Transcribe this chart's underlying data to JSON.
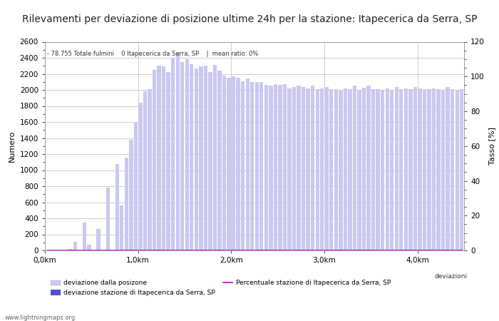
{
  "title": "Rilevamenti per deviazione di posizione ultime 24h per la stazione: Itapecerica da Serra, SP",
  "subtitle": "- 78.755 Totale fulmini    0 Itapecerica da Serra, SP    |  mean ratio: 0%",
  "ylabel_left": "Numero",
  "ylabel_right": "Tasso [%]",
  "watermark": "www.lightningmaps.org",
  "xtick_labels": [
    "0,0km",
    "1,0km",
    "2,0km",
    "3,0km",
    "4,0km"
  ],
  "ylim_left": [
    0,
    2600
  ],
  "ylim_right": [
    0,
    120
  ],
  "n_bars": 90,
  "km_range": 4.5,
  "bar_values": [
    0,
    2,
    0,
    0,
    0,
    15,
    110,
    0,
    350,
    75,
    0,
    270,
    0,
    780,
    0,
    1080,
    560,
    1160,
    1380,
    1590,
    1840,
    1980,
    2010,
    2250,
    2300,
    2290,
    2220,
    2400,
    2460,
    2350,
    2380,
    2320,
    2270,
    2290,
    2300,
    2220,
    2310,
    2240,
    2180,
    2150,
    2170,
    2150,
    2110,
    2140,
    2100,
    2100,
    2100,
    2060,
    2050,
    2070,
    2060,
    2070,
    2020,
    2040,
    2050,
    2040,
    2020,
    2050,
    2010,
    2020,
    2040,
    2010,
    2010,
    2000,
    2020,
    2010,
    2050,
    2000,
    2030,
    2050,
    2010,
    2010,
    2000,
    2020,
    2000,
    2040,
    2010,
    2020,
    2010,
    2040,
    2020,
    2010,
    2010,
    2020,
    2010,
    2000,
    2040,
    2010,
    2000,
    2010
  ],
  "station_bar_values": [
    0,
    0,
    0,
    0,
    0,
    0,
    0,
    0,
    0,
    0,
    0,
    0,
    0,
    0,
    0,
    0,
    0,
    0,
    0,
    0,
    0,
    0,
    0,
    0,
    0,
    0,
    0,
    0,
    0,
    0,
    0,
    0,
    0,
    0,
    0,
    0,
    0,
    0,
    0,
    0,
    0,
    0,
    0,
    0,
    0,
    0,
    0,
    0,
    0,
    0,
    0,
    0,
    0,
    0,
    0,
    0,
    0,
    0,
    0,
    0,
    0,
    0,
    0,
    0,
    0,
    0,
    0,
    0,
    0,
    0,
    0,
    0,
    0,
    0,
    0,
    0,
    0,
    0,
    0,
    0,
    0,
    0,
    0,
    0,
    0,
    0,
    0,
    0,
    0,
    0
  ],
  "line_values": [
    0,
    0,
    0,
    0,
    0,
    0,
    0,
    0,
    0,
    0,
    0,
    0,
    0,
    0,
    0,
    0,
    0,
    0,
    0,
    0,
    0,
    0,
    0,
    0,
    0,
    0,
    0,
    0,
    0,
    0,
    0,
    0,
    0,
    0,
    0,
    0,
    0,
    0,
    0,
    0,
    0,
    0,
    0,
    0,
    0,
    0,
    0,
    0,
    0,
    0,
    0,
    0,
    0,
    0,
    0,
    0,
    0,
    0,
    0,
    0,
    0,
    0,
    0,
    0,
    0,
    0,
    0,
    0,
    0,
    0,
    0,
    0,
    0,
    0,
    0,
    0,
    0,
    0,
    0,
    0,
    0,
    0,
    0,
    0,
    0,
    0,
    0,
    0,
    0,
    0
  ],
  "bar_color_light": "#c8c8f0",
  "bar_color_dark": "#5050c8",
  "line_color": "#cc00cc",
  "legend_light_label": "deviazione dalla posizone",
  "legend_dark_label": "deviazione stazione di Itapecerica da Serra, SP",
  "legend_line_label": "Percentuale stazione di Itapecerica da Serra, SP",
  "legend_right_label": "deviazioni",
  "background_color": "#ffffff",
  "grid_color": "#bbbbbb",
  "title_fontsize": 10,
  "axis_fontsize": 7.5,
  "label_fontsize": 8
}
